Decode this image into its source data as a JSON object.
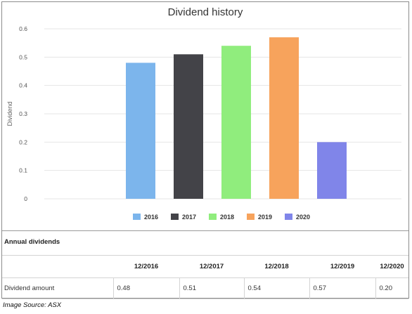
{
  "chart_data": {
    "type": "bar",
    "title": "Dividend history",
    "ylabel": "Dividend",
    "xlabel": "",
    "ylim": [
      0,
      0.6
    ],
    "yticks": [
      "0",
      "0.1",
      "0.2",
      "0.3",
      "0.4",
      "0.5",
      "0.6"
    ],
    "grid": true,
    "legend_position": "bottom",
    "series": [
      {
        "name": "2016",
        "value": 0.48,
        "color": "#7cb5ec"
      },
      {
        "name": "2017",
        "value": 0.51,
        "color": "#434348"
      },
      {
        "name": "2018",
        "value": 0.54,
        "color": "#90ed7d"
      },
      {
        "name": "2019",
        "value": 0.57,
        "color": "#f7a35c"
      },
      {
        "name": "2020",
        "value": 0.2,
        "color": "#8085e9"
      }
    ]
  },
  "table": {
    "title": "Annual dividends",
    "headers": [
      "12/2016",
      "12/2017",
      "12/2018",
      "12/2019",
      "12/2020"
    ],
    "row_label": "Dividend amount",
    "values": [
      "0.48",
      "0.51",
      "0.54",
      "0.57",
      "0.20"
    ]
  },
  "source": "Image Source: ASX"
}
